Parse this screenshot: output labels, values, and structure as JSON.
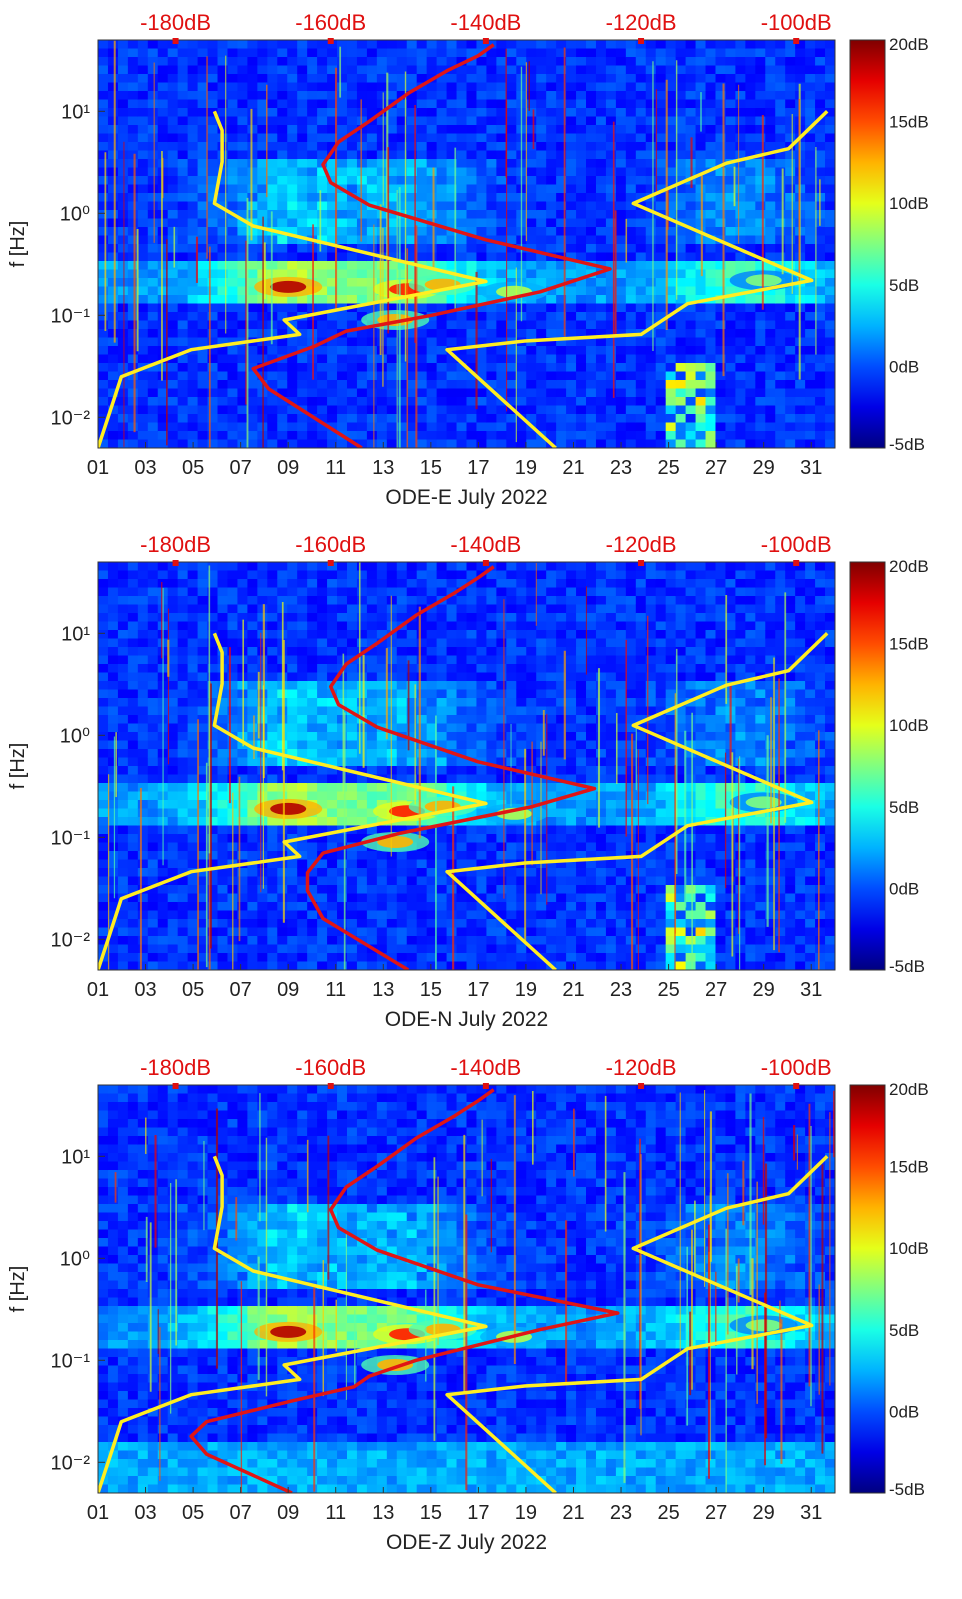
{
  "chart_data": [
    {
      "type": "heatmap",
      "title": "",
      "xlabel": "ODE-E July 2022",
      "ylabel": "f [Hz]",
      "x_tick_labels": [
        "01",
        "03",
        "05",
        "07",
        "09",
        "11",
        "13",
        "15",
        "17",
        "19",
        "21",
        "23",
        "25",
        "27",
        "29",
        "31"
      ],
      "x_ticks_days": [
        1,
        3,
        5,
        7,
        9,
        11,
        13,
        15,
        17,
        19,
        21,
        23,
        25,
        27,
        29,
        31
      ],
      "xlim_days": [
        1,
        32
      ],
      "y_scale": "log",
      "ylim_hz": [
        0.005,
        50
      ],
      "y_tick_values": [
        0.01,
        0.1,
        1,
        10
      ],
      "y_tick_labels": [
        "10⁻²",
        "10⁻¹",
        "10⁰",
        "10¹"
      ],
      "top_axis_labels": [
        "-180dB",
        "-160dB",
        "-140dB",
        "-120dB",
        "-100dB"
      ],
      "top_axis_db": [
        -180,
        -160,
        -140,
        -120,
        -100
      ],
      "top_axis_range_db": [
        -190,
        -95
      ],
      "colorbar_labels": [
        "20dB",
        "15dB",
        "10dB",
        "5dB",
        "0dB",
        "-5dB"
      ],
      "colorbar_range_db": [
        -5,
        20
      ],
      "series": [
        {
          "name": "noise-model-low",
          "color": "#ffee22",
          "points": [
            [
              -190,
              0.005
            ],
            [
              -188,
              0.0145
            ],
            [
              -187,
              0.025
            ],
            [
              -178,
              0.046
            ],
            [
              -164,
              0.065
            ],
            [
              -166,
              0.09
            ],
            [
              -140,
              0.215
            ],
            [
              -170,
              0.75
            ],
            [
              -175,
              1.25
            ],
            [
              -174,
              3.2
            ],
            [
              -174,
              6.5
            ],
            [
              -175,
              10
            ]
          ]
        },
        {
          "name": "noise-model-high",
          "color": "#ffee22",
          "points": [
            [
              -131,
              0.005
            ],
            [
              -145,
              0.046
            ],
            [
              -135,
              0.056
            ],
            [
              -120,
              0.065
            ],
            [
              -114,
              0.13
            ],
            [
              -98,
              0.22
            ],
            [
              -121,
              1.25
            ],
            [
              -109,
              3.1
            ],
            [
              -101,
              4.3
            ],
            [
              -96,
              10
            ]
          ]
        },
        {
          "name": "median-psd",
          "color": "#e01515",
          "points": [
            [
              -156,
              0.005
            ],
            [
              -168,
              0.019
            ],
            [
              -170,
              0.03
            ],
            [
              -162,
              0.05
            ],
            [
              -158,
              0.07
            ],
            [
              -147,
              0.1
            ],
            [
              -133,
              0.17
            ],
            [
              -124,
              0.285
            ],
            [
              -140,
              0.55
            ],
            [
              -155,
              1.2
            ],
            [
              -160,
              2.0
            ],
            [
              -161,
              3.0
            ],
            [
              -159,
              5.0
            ],
            [
              -155,
              8.0
            ],
            [
              -150,
              15.0
            ],
            [
              -145,
              25.0
            ],
            [
              -141,
              35.0
            ],
            [
              -139,
              45.0
            ]
          ]
        }
      ]
    },
    {
      "type": "heatmap",
      "title": "",
      "xlabel": "ODE-N July 2022",
      "ylabel": "f [Hz]",
      "x_tick_labels": [
        "01",
        "03",
        "05",
        "07",
        "09",
        "11",
        "13",
        "15",
        "17",
        "19",
        "21",
        "23",
        "25",
        "27",
        "29",
        "31"
      ],
      "x_ticks_days": [
        1,
        3,
        5,
        7,
        9,
        11,
        13,
        15,
        17,
        19,
        21,
        23,
        25,
        27,
        29,
        31
      ],
      "xlim_days": [
        1,
        32
      ],
      "y_scale": "log",
      "ylim_hz": [
        0.005,
        50
      ],
      "y_tick_values": [
        0.01,
        0.1,
        1,
        10
      ],
      "y_tick_labels": [
        "10⁻²",
        "10⁻¹",
        "10⁰",
        "10¹"
      ],
      "top_axis_labels": [
        "-180dB",
        "-160dB",
        "-140dB",
        "-120dB",
        "-100dB"
      ],
      "top_axis_db": [
        -180,
        -160,
        -140,
        -120,
        -100
      ],
      "top_axis_range_db": [
        -190,
        -95
      ],
      "colorbar_labels": [
        "20dB",
        "15dB",
        "10dB",
        "5dB",
        "0dB",
        "-5dB"
      ],
      "colorbar_range_db": [
        -5,
        20
      ],
      "series": [
        {
          "name": "noise-model-low",
          "color": "#ffee22",
          "points": [
            [
              -190,
              0.005
            ],
            [
              -188,
              0.0145
            ],
            [
              -187,
              0.025
            ],
            [
              -178,
              0.046
            ],
            [
              -164,
              0.065
            ],
            [
              -166,
              0.09
            ],
            [
              -140,
              0.215
            ],
            [
              -170,
              0.75
            ],
            [
              -175,
              1.25
            ],
            [
              -174,
              3.2
            ],
            [
              -174,
              6.5
            ],
            [
              -175,
              10
            ]
          ]
        },
        {
          "name": "noise-model-high",
          "color": "#ffee22",
          "points": [
            [
              -131,
              0.005
            ],
            [
              -145,
              0.046
            ],
            [
              -135,
              0.056
            ],
            [
              -120,
              0.065
            ],
            [
              -114,
              0.13
            ],
            [
              -98,
              0.22
            ],
            [
              -121,
              1.25
            ],
            [
              -109,
              3.1
            ],
            [
              -101,
              4.3
            ],
            [
              -96,
              10
            ]
          ]
        },
        {
          "name": "median-psd",
          "color": "#e01515",
          "points": [
            [
              -150,
              0.005
            ],
            [
              -161,
              0.016
            ],
            [
              -163,
              0.03
            ],
            [
              -163,
              0.045
            ],
            [
              -161,
              0.07
            ],
            [
              -151,
              0.11
            ],
            [
              -134,
              0.2
            ],
            [
              -126,
              0.3
            ],
            [
              -141,
              0.55
            ],
            [
              -154,
              1.2
            ],
            [
              -159,
              2.0
            ],
            [
              -160,
              3.0
            ],
            [
              -158,
              5.0
            ],
            [
              -154,
              8.0
            ],
            [
              -149,
              15.0
            ],
            [
              -144,
              25.0
            ],
            [
              -141,
              35.0
            ],
            [
              -139,
              45.0
            ]
          ]
        }
      ]
    },
    {
      "type": "heatmap",
      "title": "",
      "xlabel": "ODE-Z July 2022",
      "ylabel": "f [Hz]",
      "x_tick_labels": [
        "01",
        "03",
        "05",
        "07",
        "09",
        "11",
        "13",
        "15",
        "17",
        "19",
        "21",
        "23",
        "25",
        "27",
        "29",
        "31"
      ],
      "x_ticks_days": [
        1,
        3,
        5,
        7,
        9,
        11,
        13,
        15,
        17,
        19,
        21,
        23,
        25,
        27,
        29,
        31
      ],
      "xlim_days": [
        1,
        32
      ],
      "y_scale": "log",
      "ylim_hz": [
        0.005,
        50
      ],
      "y_tick_values": [
        0.01,
        0.1,
        1,
        10
      ],
      "y_tick_labels": [
        "10⁻²",
        "10⁻¹",
        "10⁰",
        "10¹"
      ],
      "top_axis_labels": [
        "-180dB",
        "-160dB",
        "-140dB",
        "-120dB",
        "-100dB"
      ],
      "top_axis_db": [
        -180,
        -160,
        -140,
        -120,
        -100
      ],
      "top_axis_range_db": [
        -190,
        -95
      ],
      "colorbar_labels": [
        "20dB",
        "15dB",
        "10dB",
        "5dB",
        "0dB",
        "-5dB"
      ],
      "colorbar_range_db": [
        -5,
        20
      ],
      "series": [
        {
          "name": "noise-model-low",
          "color": "#ffee22",
          "points": [
            [
              -190,
              0.005
            ],
            [
              -188,
              0.0145
            ],
            [
              -187,
              0.025
            ],
            [
              -178,
              0.046
            ],
            [
              -164,
              0.065
            ],
            [
              -166,
              0.09
            ],
            [
              -140,
              0.215
            ],
            [
              -170,
              0.75
            ],
            [
              -175,
              1.25
            ],
            [
              -174,
              3.2
            ],
            [
              -174,
              6.5
            ],
            [
              -175,
              10
            ]
          ]
        },
        {
          "name": "noise-model-high",
          "color": "#ffee22",
          "points": [
            [
              -131,
              0.005
            ],
            [
              -145,
              0.046
            ],
            [
              -135,
              0.056
            ],
            [
              -120,
              0.065
            ],
            [
              -114,
              0.13
            ],
            [
              -98,
              0.22
            ],
            [
              -121,
              1.25
            ],
            [
              -109,
              3.1
            ],
            [
              -101,
              4.3
            ],
            [
              -96,
              10
            ]
          ]
        },
        {
          "name": "median-psd",
          "color": "#e01515",
          "points": [
            [
              -165,
              0.005
            ],
            [
              -176,
              0.012
            ],
            [
              -178,
              0.018
            ],
            [
              -176,
              0.025
            ],
            [
              -165,
              0.04
            ],
            [
              -157,
              0.055
            ],
            [
              -155,
              0.07
            ],
            [
              -149,
              0.1
            ],
            [
              -133,
              0.2
            ],
            [
              -123,
              0.29
            ],
            [
              -141,
              0.55
            ],
            [
              -154,
              1.2
            ],
            [
              -159,
              2.0
            ],
            [
              -160,
              3.0
            ],
            [
              -158,
              5.0
            ],
            [
              -154,
              8.0
            ],
            [
              -149,
              15.0
            ],
            [
              -144,
              25.0
            ],
            [
              -141,
              35.0
            ],
            [
              -139,
              45.0
            ]
          ]
        }
      ]
    }
  ]
}
